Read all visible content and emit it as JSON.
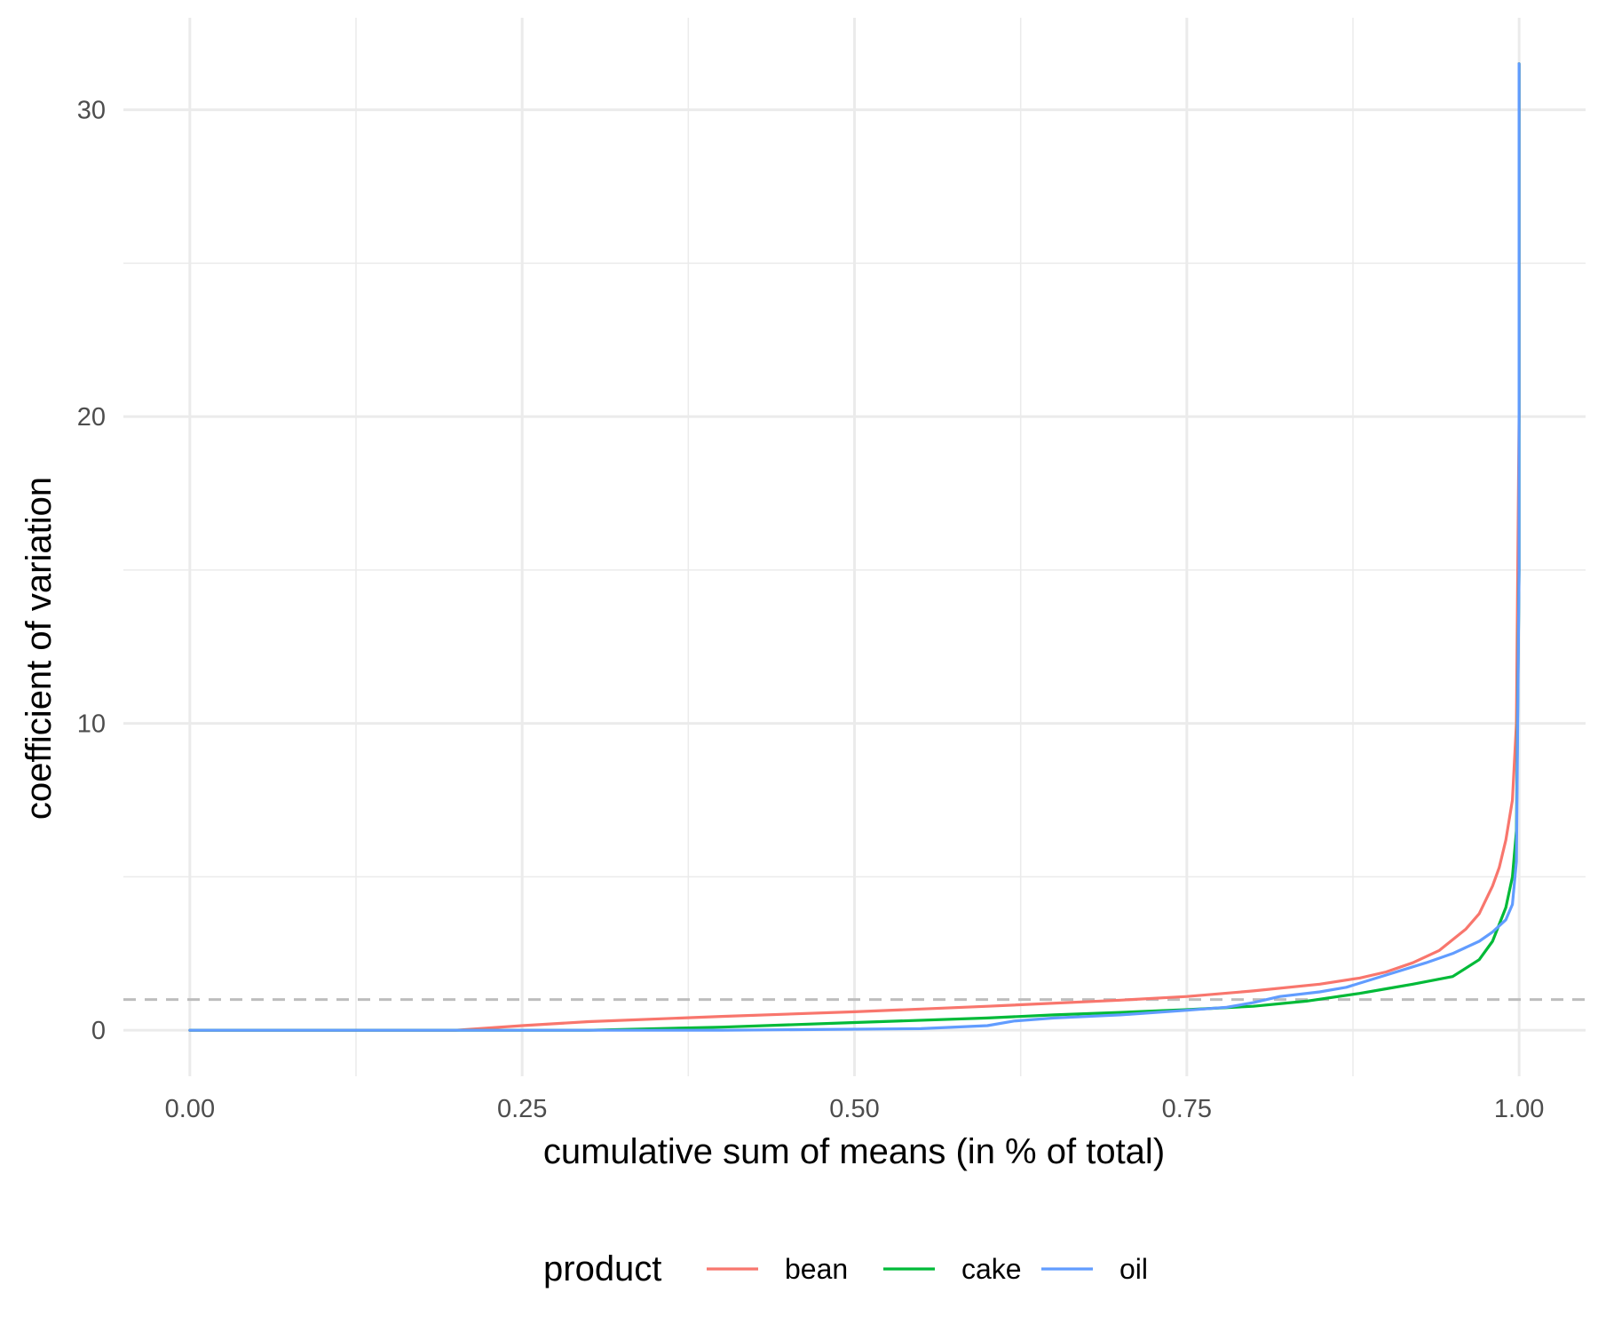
{
  "chart_data": {
    "type": "line",
    "title": "",
    "xlabel": "cumulative sum of means (in % of total)",
    "ylabel": "coefficient of variation",
    "xlim": [
      -0.05,
      1.05
    ],
    "ylim": [
      -1.5,
      33
    ],
    "x_ticks": [
      0,
      0.25,
      0.5,
      0.75,
      1
    ],
    "x_tick_labels": [
      "0.00",
      "0.25",
      "0.50",
      "0.75",
      "1.00"
    ],
    "y_ticks": [
      0,
      10,
      20,
      30
    ],
    "y_tick_labels": [
      "0",
      "10",
      "20",
      "30"
    ],
    "grid": true,
    "reference_line": {
      "y": 1,
      "style": "dashed",
      "color": "#bdbdbd"
    },
    "legend": {
      "title": "product",
      "position": "bottom"
    },
    "series": [
      {
        "name": "bean",
        "color": "#F8766D",
        "x": [
          0,
          0.2,
          0.25,
          0.3,
          0.4,
          0.5,
          0.6,
          0.7,
          0.75,
          0.8,
          0.85,
          0.88,
          0.9,
          0.92,
          0.94,
          0.96,
          0.97,
          0.98,
          0.985,
          0.99,
          0.995,
          0.998,
          1.0,
          1.0
        ],
        "y": [
          0,
          0,
          0.15,
          0.28,
          0.45,
          0.6,
          0.78,
          0.98,
          1.1,
          1.28,
          1.5,
          1.7,
          1.9,
          2.2,
          2.6,
          3.3,
          3.8,
          4.7,
          5.3,
          6.2,
          7.5,
          10,
          20,
          31.5
        ]
      },
      {
        "name": "cake",
        "color": "#00BA38",
        "x": [
          0,
          0.3,
          0.4,
          0.5,
          0.6,
          0.65,
          0.7,
          0.75,
          0.8,
          0.84,
          0.88,
          0.9,
          0.92,
          0.95,
          0.97,
          0.98,
          0.99,
          0.995,
          0.998,
          1.0,
          1.0
        ],
        "y": [
          0,
          0,
          0.1,
          0.25,
          0.4,
          0.5,
          0.58,
          0.67,
          0.78,
          0.95,
          1.2,
          1.35,
          1.5,
          1.75,
          2.3,
          2.9,
          4.0,
          5.0,
          6.5,
          15,
          31.5
        ]
      },
      {
        "name": "oil",
        "color": "#619CFF",
        "x": [
          0,
          0.4,
          0.55,
          0.6,
          0.62,
          0.65,
          0.7,
          0.75,
          0.78,
          0.8,
          0.82,
          0.85,
          0.87,
          0.9,
          0.93,
          0.95,
          0.97,
          0.98,
          0.99,
          0.995,
          0.998,
          1.0,
          1.0
        ],
        "y": [
          0,
          0,
          0.05,
          0.15,
          0.3,
          0.4,
          0.5,
          0.65,
          0.75,
          0.9,
          1.1,
          1.25,
          1.4,
          1.8,
          2.2,
          2.5,
          2.9,
          3.2,
          3.6,
          4.1,
          5.5,
          15,
          31.5
        ]
      }
    ]
  }
}
